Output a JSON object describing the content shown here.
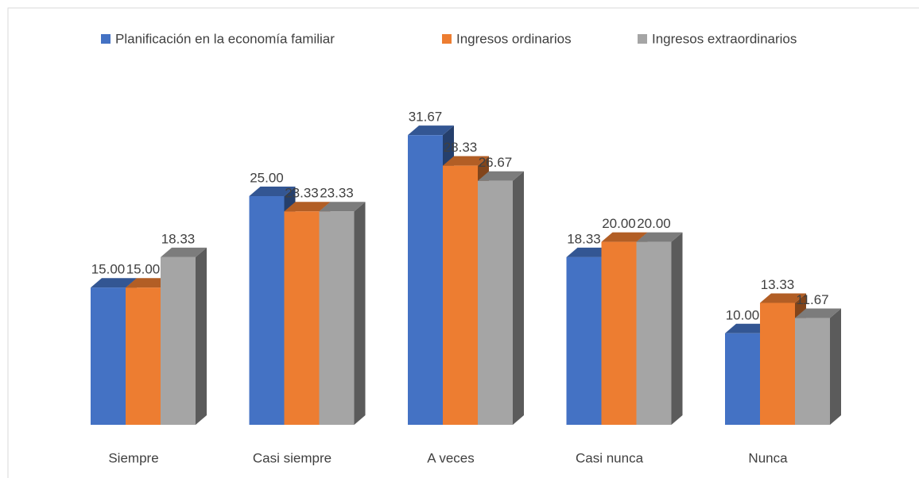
{
  "chart_data": {
    "type": "bar3d",
    "categories": [
      "Siempre",
      "Casi siempre",
      "A veces",
      "Casi nunca",
      "Nunca"
    ],
    "series": [
      {
        "name": "Planificación en la economía familiar",
        "color": "#4472c4",
        "values": [
          15,
          25,
          31.67,
          18.33,
          10
        ],
        "value_labels": [
          "15.00",
          "25.00",
          "31.67",
          "18.33",
          "10.00"
        ]
      },
      {
        "name": "Ingresos ordinarios",
        "color": "#ed7d31",
        "values": [
          15,
          23.33,
          28.33,
          20,
          13.33
        ],
        "value_labels": [
          "15.00",
          "23.33",
          "28.33",
          "20.00",
          "13.33"
        ]
      },
      {
        "name": "Ingresos extraordinarios",
        "color": "#a5a5a5",
        "values": [
          18.33,
          23.33,
          26.67,
          20,
          11.67
        ],
        "value_labels": [
          "18.33",
          "23.33",
          "26.67",
          "20.00",
          "11.67"
        ]
      }
    ],
    "legend": "top"
  }
}
